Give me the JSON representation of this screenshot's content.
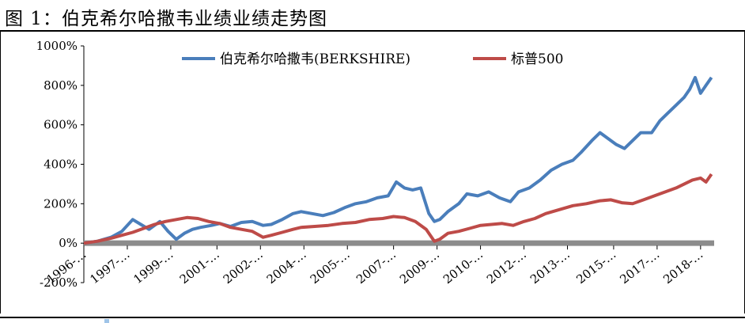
{
  "figure": {
    "title": "图 1：伯克希尔哈撒韦业绩业绩走势图"
  },
  "chart_data": {
    "type": "line",
    "ylim": [
      -200,
      1000
    ],
    "ytick_values": [
      -200,
      0,
      200,
      400,
      600,
      800,
      1000
    ],
    "ytick_labels": [
      "-200%",
      "0%",
      "200%",
      "400%",
      "600%",
      "800%",
      "1000%"
    ],
    "xtick_labels": [
      "1996-…",
      "1997-…",
      "1999-…",
      "2001-…",
      "2002-…",
      "2004-…",
      "2005-…",
      "2007-…",
      "2009-…",
      "2010-…",
      "2012-…",
      "2013-…",
      "2015-…",
      "2017-…",
      "2018-…"
    ],
    "xtick_years": [
      1996.0,
      1997.6,
      1999.2,
      2000.9,
      2002.5,
      2004.1,
      2005.7,
      2007.4,
      2009.0,
      2010.6,
      2012.2,
      2013.8,
      2015.5,
      2017.1,
      2018.7
    ],
    "x_range": [
      1996.0,
      2019.2
    ],
    "legend_position": "top-center",
    "grid": false,
    "baseline_color": "#8c8c8c",
    "series": [
      {
        "name": "伯克希尔哈撒韦(BERKSHIRE)",
        "color": "#4a7ebb",
        "x": [
          1996.0,
          1996.5,
          1997.0,
          1997.4,
          1997.8,
          1998.1,
          1998.4,
          1998.8,
          1999.1,
          1999.4,
          1999.7,
          2000.0,
          2000.3,
          2000.7,
          2001.0,
          2001.4,
          2001.8,
          2002.2,
          2002.6,
          2002.9,
          2003.3,
          2003.7,
          2004.0,
          2004.4,
          2004.8,
          2005.2,
          2005.6,
          2006.0,
          2006.4,
          2006.8,
          2007.2,
          2007.5,
          2007.8,
          2008.1,
          2008.4,
          2008.7,
          2008.9,
          2009.1,
          2009.4,
          2009.8,
          2010.1,
          2010.5,
          2010.9,
          2011.3,
          2011.7,
          2012.0,
          2012.4,
          2012.8,
          2013.2,
          2013.6,
          2014.0,
          2014.3,
          2014.7,
          2015.0,
          2015.3,
          2015.6,
          2015.9,
          2016.2,
          2016.5,
          2016.9,
          2017.2,
          2017.5,
          2017.8,
          2018.1,
          2018.3,
          2018.5,
          2018.7,
          2018.9,
          2019.1
        ],
        "y": [
          0,
          10,
          30,
          60,
          120,
          95,
          70,
          110,
          60,
          20,
          50,
          70,
          80,
          90,
          100,
          85,
          105,
          110,
          90,
          95,
          120,
          150,
          160,
          150,
          140,
          155,
          180,
          200,
          210,
          230,
          240,
          310,
          280,
          270,
          280,
          150,
          110,
          120,
          160,
          200,
          250,
          240,
          260,
          230,
          210,
          260,
          280,
          320,
          370,
          400,
          420,
          460,
          520,
          560,
          530,
          500,
          480,
          520,
          560,
          560,
          620,
          660,
          700,
          740,
          780,
          840,
          760,
          800,
          840
        ]
      },
      {
        "name": "标普500",
        "color": "#be4b48",
        "x": [
          1996.0,
          1996.5,
          1997.0,
          1997.4,
          1997.8,
          1998.2,
          1998.6,
          1999.0,
          1999.4,
          1999.8,
          2000.2,
          2000.6,
          2001.0,
          2001.4,
          2001.8,
          2002.2,
          2002.6,
          2002.9,
          2003.3,
          2003.7,
          2004.0,
          2004.5,
          2005.0,
          2005.5,
          2006.0,
          2006.5,
          2007.0,
          2007.4,
          2007.8,
          2008.2,
          2008.6,
          2008.9,
          2009.1,
          2009.4,
          2009.8,
          2010.2,
          2010.6,
          2011.0,
          2011.4,
          2011.8,
          2012.2,
          2012.6,
          2013.0,
          2013.5,
          2014.0,
          2014.5,
          2015.0,
          2015.4,
          2015.8,
          2016.2,
          2016.6,
          2017.0,
          2017.4,
          2017.8,
          2018.1,
          2018.4,
          2018.7,
          2018.9,
          2019.1
        ],
        "y": [
          0,
          10,
          25,
          40,
          55,
          75,
          95,
          110,
          120,
          130,
          125,
          110,
          100,
          80,
          70,
          60,
          30,
          40,
          55,
          70,
          80,
          85,
          90,
          100,
          105,
          120,
          125,
          135,
          130,
          110,
          70,
          10,
          20,
          50,
          60,
          75,
          90,
          95,
          100,
          90,
          110,
          125,
          150,
          170,
          190,
          200,
          215,
          220,
          205,
          200,
          220,
          240,
          260,
          280,
          300,
          320,
          330,
          310,
          350
        ]
      }
    ]
  }
}
